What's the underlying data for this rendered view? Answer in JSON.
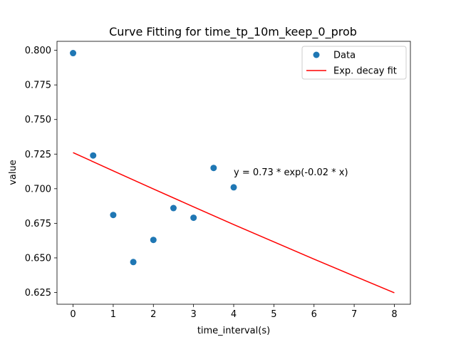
{
  "chart_data": {
    "type": "scatter",
    "title": "Curve Fitting for time_tp_10m_keep_0_prob",
    "xlabel": "time_interval(s)",
    "ylabel": "value",
    "xlim": [
      -0.4,
      8.4
    ],
    "ylim": [
      0.6165,
      0.8065
    ],
    "x_ticks": [
      0,
      1,
      2,
      3,
      4,
      5,
      6,
      7,
      8
    ],
    "x_tick_labels": [
      "0",
      "1",
      "2",
      "3",
      "4",
      "5",
      "6",
      "7",
      "8"
    ],
    "y_ticks": [
      0.625,
      0.65,
      0.675,
      0.7,
      0.725,
      0.75,
      0.775,
      0.8
    ],
    "y_tick_labels": [
      "0.625",
      "0.650",
      "0.675",
      "0.700",
      "0.725",
      "0.750",
      "0.775",
      "0.800"
    ],
    "grid": false,
    "legend_position": "top-right",
    "series": [
      {
        "name": "Data",
        "kind": "scatter",
        "color": "#1f77b4",
        "x": [
          0,
          0.5,
          1,
          1.5,
          2,
          2.5,
          3,
          3.5,
          4
        ],
        "y": [
          0.798,
          0.724,
          0.681,
          0.647,
          0.663,
          0.686,
          0.679,
          0.715,
          0.701
        ]
      },
      {
        "name": "Exp. decay fit",
        "kind": "line",
        "color": "#ff0000",
        "x": [
          0,
          1,
          2,
          3,
          4,
          5,
          6,
          7,
          8
        ],
        "y": [
          0.7261,
          0.7129,
          0.6998,
          0.6869,
          0.6741,
          0.6616,
          0.6491,
          0.6369,
          0.6248
        ]
      }
    ],
    "annotations": [
      {
        "text": "y = 0.73 * exp(-0.02 * x)",
        "x": 4,
        "y": 0.706
      }
    ]
  }
}
